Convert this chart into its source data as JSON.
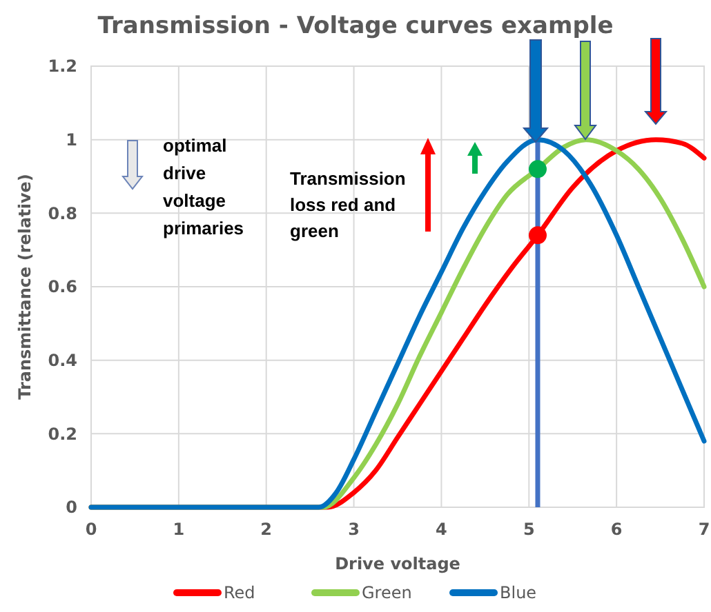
{
  "chart_data": {
    "type": "line",
    "title": "Transmission - Voltage curves example",
    "xlabel": "Drive voltage",
    "ylabel": "Transmittance (relative)",
    "xlim": [
      0,
      7
    ],
    "xticks": [
      0,
      1,
      2,
      3,
      4,
      5,
      6,
      7
    ],
    "ylim": [
      0,
      1.2
    ],
    "yticks": [
      0,
      0.2,
      0.4,
      0.6,
      0.8,
      1,
      1.2
    ],
    "grid": true,
    "legend": "bottom",
    "marker": "none",
    "series": [
      {
        "name": "Red",
        "color": "#ff0000",
        "x": [
          0,
          2.7,
          3.0,
          3.25,
          3.5,
          3.75,
          4.0,
          4.25,
          4.5,
          4.8,
          5.1,
          5.5,
          6.0,
          6.45,
          6.75,
          7
        ],
        "values": [
          0,
          0,
          0.04,
          0.1,
          0.19,
          0.28,
          0.37,
          0.46,
          0.55,
          0.65,
          0.74,
          0.87,
          0.97,
          1.0,
          0.99,
          0.95
        ]
      },
      {
        "name": "Green",
        "color": "#92d050",
        "x": [
          0,
          2.65,
          3.0,
          3.25,
          3.5,
          3.75,
          4.0,
          4.25,
          4.5,
          4.75,
          5.1,
          5.4,
          5.65,
          6.0,
          6.25,
          6.5,
          6.75,
          7
        ],
        "values": [
          0,
          0,
          0.08,
          0.17,
          0.28,
          0.41,
          0.53,
          0.65,
          0.76,
          0.85,
          0.92,
          0.98,
          1.0,
          0.97,
          0.92,
          0.84,
          0.73,
          0.6
        ]
      },
      {
        "name": "Blue",
        "color": "#0070c0",
        "x": [
          0,
          2.6,
          2.8,
          3.0,
          3.25,
          3.5,
          3.75,
          4.0,
          4.25,
          4.5,
          4.75,
          5.1,
          5.4,
          5.7,
          6.0,
          6.25,
          6.5,
          6.75,
          7
        ],
        "values": [
          0,
          0,
          0.04,
          0.13,
          0.26,
          0.39,
          0.52,
          0.64,
          0.76,
          0.86,
          0.94,
          1.0,
          0.97,
          0.88,
          0.74,
          0.6,
          0.46,
          0.32,
          0.18
        ]
      },
      {
        "type": "scatter",
        "marker": "circle",
        "color": "#00b050",
        "x": [
          5.1
        ],
        "values": [
          0.92
        ]
      },
      {
        "type": "scatter",
        "marker": "circle",
        "color": "#ff0000",
        "x": [
          5.1
        ],
        "values": [
          0.74
        ]
      }
    ],
    "ref_lines": [
      {
        "axis": "x",
        "value": 5.1,
        "color": "#4472c4"
      }
    ],
    "annotations": [
      "optimal drive voltage primaries",
      "Transmission loss red and green"
    ]
  }
}
